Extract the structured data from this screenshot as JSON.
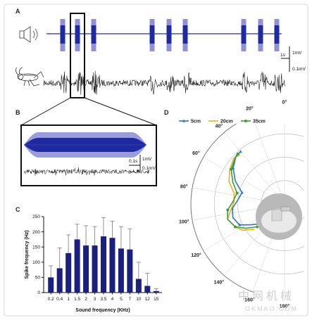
{
  "panels": {
    "a": "A",
    "b": "B",
    "c": "C",
    "d": "D"
  },
  "colors": {
    "stim_outer": "#8f91d6",
    "stim_inner": "#1f2aa0",
    "bar": "#1a2080",
    "trace": "#111111",
    "series_5cm": "#2f76c4",
    "series_20cm": "#e6b41a",
    "series_35cm": "#3e9b3e"
  },
  "icons": {
    "speaker": "speaker-icon",
    "cricket": "cricket-icon",
    "device": "device-photo"
  },
  "panel_a": {
    "scale_time": "1s",
    "scale_top": "1mV",
    "scale_bottom": "0.1mV"
  },
  "panel_b": {
    "scale_time": "0.1s",
    "scale_top": "1mV",
    "scale_bottom": "0.1mV"
  },
  "watermark": {
    "cn": "中网机械",
    "en": "OKMAO.COM"
  },
  "chart_data": [
    {
      "type": "bar",
      "panel": "C",
      "categories": [
        "0.2",
        "0.4",
        "1",
        "1.5",
        "2",
        "3",
        "3.5",
        "4",
        "5",
        "7",
        "10",
        "12",
        "15"
      ],
      "values": [
        50,
        80,
        130,
        175,
        155,
        155,
        185,
        180,
        145,
        142,
        45,
        22,
        5
      ],
      "errors": [
        38,
        67,
        60,
        50,
        65,
        62,
        62,
        55,
        72,
        68,
        55,
        42,
        8
      ],
      "xlabel": "Sound frequency (KHz)",
      "ylabel": "Spike frequency (Hz)",
      "ylim": [
        0,
        250
      ],
      "yticks": [
        "0",
        "50",
        "100",
        "150",
        "200",
        "250"
      ]
    },
    {
      "type": "line",
      "subtype": "polar",
      "panel": "D",
      "theta_range": [
        0,
        180
      ],
      "theta_ticks": [
        "0°",
        "20°",
        "40°",
        "60°",
        "80°",
        "100°",
        "120°",
        "140°",
        "160°",
        "180°"
      ],
      "grid": true,
      "legend_position": "top",
      "series": [
        {
          "name": "5cm",
          "theta": [
            130,
            122,
            115,
            105,
            95,
            85,
            75,
            65,
            55,
            45,
            40
          ],
          "r": [
            0.33,
            0.42,
            0.53,
            0.57,
            0.56,
            0.5,
            0.47,
            0.58,
            0.67,
            0.73,
            0.73
          ]
        },
        {
          "name": "20cm",
          "theta": [
            130,
            122,
            115,
            105,
            97,
            88,
            78,
            68,
            58,
            48,
            42
          ],
          "r": [
            0.42,
            0.53,
            0.58,
            0.63,
            0.58,
            0.54,
            0.55,
            0.64,
            0.69,
            0.73,
            0.71
          ]
        },
        {
          "name": "35cm",
          "theta": [
            130,
            122,
            115,
            105,
            96,
            87,
            77,
            67,
            57,
            47,
            43
          ],
          "r": [
            0.38,
            0.49,
            0.58,
            0.63,
            0.61,
            0.55,
            0.52,
            0.6,
            0.68,
            0.72,
            0.73
          ]
        }
      ]
    }
  ]
}
